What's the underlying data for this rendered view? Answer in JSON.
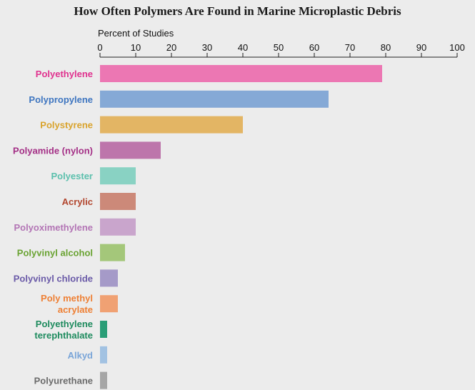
{
  "chart_data": {
    "type": "bar",
    "orientation": "horizontal",
    "title": "How Often Polymers Are Found in Marine Microplastic Debris",
    "xlabel": "Percent of Studies",
    "xlim": [
      0,
      100
    ],
    "ticks": [
      0,
      10,
      20,
      30,
      40,
      50,
      60,
      70,
      80,
      90,
      100
    ],
    "axis_position": "top",
    "grid": false,
    "categories": [
      "Polyethylene",
      "Polypropylene",
      "Polystyrene",
      "Polyamide (nylon)",
      "Polyester",
      "Acrylic",
      "Polyoximethylene",
      "Polyvinyl alcohol",
      "Polyvinyl chloride",
      "Poly methyl\nacrylate",
      "Polyethylene\nterephthalate",
      "Alkyd",
      "Polyurethane"
    ],
    "values": [
      79,
      64,
      40,
      17,
      10,
      10,
      10,
      7,
      5,
      5,
      2,
      2,
      2
    ],
    "bar_colors": [
      "#ec77b3",
      "#85a9d6",
      "#e3b564",
      "#bd75ab",
      "#89d2c3",
      "#cc8979",
      "#c9a5cc",
      "#a4c77a",
      "#a59ac8",
      "#f0a173",
      "#2a9e77",
      "#a2c2e2",
      "#a6a6a6"
    ],
    "label_colors": [
      "#e0338f",
      "#3f76c0",
      "#d9a32c",
      "#a42f86",
      "#5cc0ad",
      "#b2462e",
      "#b375b5",
      "#6aa333",
      "#6b5ba8",
      "#ee8035",
      "#1e8b5e",
      "#7aa5d8",
      "#6b6b6b"
    ]
  }
}
